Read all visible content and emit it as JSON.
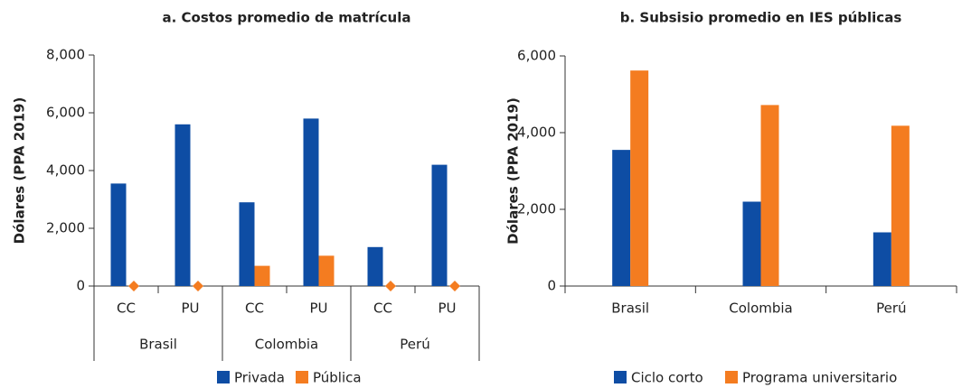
{
  "chart_data": [
    {
      "type": "bar",
      "title": "a. Costos promedio de matrícula",
      "ylabel": "Dólares (PPA 2019)",
      "categories": [
        "CC",
        "PU",
        "CC",
        "PU",
        "CC",
        "PU"
      ],
      "groups": [
        "Brasil",
        "Colombia",
        "Perú"
      ],
      "series": [
        {
          "name": "Privada",
          "color": "#0e4da4",
          "values": [
            3550,
            5600,
            2900,
            5800,
            1350,
            4200
          ]
        },
        {
          "name": "Pública",
          "color": "#f47c20",
          "values": [
            0,
            0,
            700,
            1050,
            0,
            0
          ]
        }
      ],
      "ylim": [
        0,
        8000
      ],
      "yticks": [
        0,
        {
          "value": 2000,
          "label": "2,000"
        },
        {
          "value": 4000,
          "label": "4,000"
        },
        {
          "value": 6000,
          "label": "6,000"
        },
        {
          "value": 8000,
          "label": "8,000"
        }
      ]
    },
    {
      "type": "bar",
      "title": "b. Subsisio promedio en IES públicas",
      "ylabel": "Dólares (PPA 2019)",
      "categories": [
        "Brasil",
        "Colombia",
        "Perú"
      ],
      "series": [
        {
          "name": "Ciclo corto",
          "color": "#0e4da4",
          "values": [
            3550,
            2200,
            1400
          ]
        },
        {
          "name": "Programa universitario",
          "color": "#f47c20",
          "values": [
            5620,
            4720,
            4180
          ]
        }
      ],
      "ylim": [
        0,
        6000
      ],
      "yticks": [
        0,
        {
          "value": 2000,
          "label": "2,000"
        },
        {
          "value": 4000,
          "label": "4,000"
        },
        {
          "value": 6000,
          "label": "6,000"
        }
      ]
    }
  ]
}
